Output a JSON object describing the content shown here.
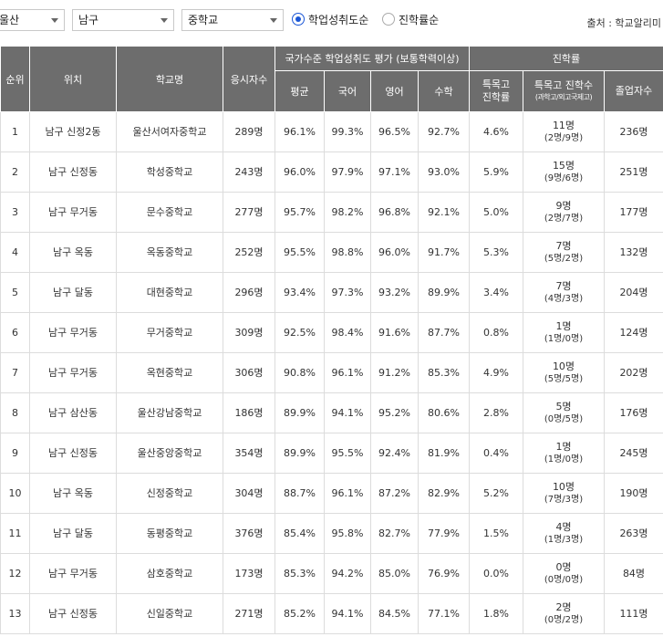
{
  "filters": {
    "region": "울산",
    "district": "남구",
    "school_type": "중학교"
  },
  "sort": {
    "option1": "학업성취도순",
    "option2": "진학률순",
    "selected": "option1"
  },
  "source": "출처 : 학교알리미",
  "headers": {
    "rank": "순위",
    "location": "위치",
    "school": "학교명",
    "examinees": "응시자수",
    "achievement_group": "국가수준 학업성취도 평가 (보통학력이상)",
    "avg": "평균",
    "korean": "국어",
    "english": "영어",
    "math": "수학",
    "advance_group": "진학률",
    "special_rate": "특목고 진학률",
    "special_count": "특목고 진학수",
    "special_count_sub": "(과학고/외고국제고)",
    "graduates": "졸업자수"
  },
  "rows": [
    {
      "rank": "1",
      "location": "남구 신정2동",
      "school": "울산서여자중학교",
      "examinees": "289명",
      "avg": "96.1%",
      "korean": "99.3%",
      "english": "96.5%",
      "math": "92.7%",
      "special_rate": "4.6%",
      "special_count": "11명",
      "special_detail": "(2명/9명)",
      "graduates": "236명"
    },
    {
      "rank": "2",
      "location": "남구 신정동",
      "school": "학성중학교",
      "examinees": "243명",
      "avg": "96.0%",
      "korean": "97.9%",
      "english": "97.1%",
      "math": "93.0%",
      "special_rate": "5.9%",
      "special_count": "15명",
      "special_detail": "(9명/6명)",
      "graduates": "251명"
    },
    {
      "rank": "3",
      "location": "남구 무거동",
      "school": "문수중학교",
      "examinees": "277명",
      "avg": "95.7%",
      "korean": "98.2%",
      "english": "96.8%",
      "math": "92.1%",
      "special_rate": "5.0%",
      "special_count": "9명",
      "special_detail": "(2명/7명)",
      "graduates": "177명"
    },
    {
      "rank": "4",
      "location": "남구 옥동",
      "school": "옥동중학교",
      "examinees": "252명",
      "avg": "95.5%",
      "korean": "98.8%",
      "english": "96.0%",
      "math": "91.7%",
      "special_rate": "5.3%",
      "special_count": "7명",
      "special_detail": "(5명/2명)",
      "graduates": "132명"
    },
    {
      "rank": "5",
      "location": "남구 달동",
      "school": "대현중학교",
      "examinees": "296명",
      "avg": "93.4%",
      "korean": "97.3%",
      "english": "93.2%",
      "math": "89.9%",
      "special_rate": "3.4%",
      "special_count": "7명",
      "special_detail": "(4명/3명)",
      "graduates": "204명"
    },
    {
      "rank": "6",
      "location": "남구 무거동",
      "school": "무거중학교",
      "examinees": "309명",
      "avg": "92.5%",
      "korean": "98.4%",
      "english": "91.6%",
      "math": "87.7%",
      "special_rate": "0.8%",
      "special_count": "1명",
      "special_detail": "(1명/0명)",
      "graduates": "124명"
    },
    {
      "rank": "7",
      "location": "남구 무거동",
      "school": "옥현중학교",
      "examinees": "306명",
      "avg": "90.8%",
      "korean": "96.1%",
      "english": "91.2%",
      "math": "85.3%",
      "special_rate": "4.9%",
      "special_count": "10명",
      "special_detail": "(5명/5명)",
      "graduates": "202명"
    },
    {
      "rank": "8",
      "location": "남구 삼산동",
      "school": "울산강남중학교",
      "examinees": "186명",
      "avg": "89.9%",
      "korean": "94.1%",
      "english": "95.2%",
      "math": "80.6%",
      "special_rate": "2.8%",
      "special_count": "5명",
      "special_detail": "(0명/5명)",
      "graduates": "176명"
    },
    {
      "rank": "9",
      "location": "남구 신정동",
      "school": "울산중앙중학교",
      "examinees": "354명",
      "avg": "89.9%",
      "korean": "95.5%",
      "english": "92.4%",
      "math": "81.9%",
      "special_rate": "0.4%",
      "special_count": "1명",
      "special_detail": "(1명/0명)",
      "graduates": "245명"
    },
    {
      "rank": "10",
      "location": "남구 옥동",
      "school": "신정중학교",
      "examinees": "304명",
      "avg": "88.7%",
      "korean": "96.1%",
      "english": "87.2%",
      "math": "82.9%",
      "special_rate": "5.2%",
      "special_count": "10명",
      "special_detail": "(7명/3명)",
      "graduates": "190명"
    },
    {
      "rank": "11",
      "location": "남구 달동",
      "school": "동평중학교",
      "examinees": "376명",
      "avg": "85.4%",
      "korean": "95.8%",
      "english": "82.7%",
      "math": "77.9%",
      "special_rate": "1.5%",
      "special_count": "4명",
      "special_detail": "(1명/3명)",
      "graduates": "263명"
    },
    {
      "rank": "12",
      "location": "남구 무거동",
      "school": "삼호중학교",
      "examinees": "173명",
      "avg": "85.3%",
      "korean": "94.2%",
      "english": "85.0%",
      "math": "76.9%",
      "special_rate": "0.0%",
      "special_count": "0명",
      "special_detail": "(0명/0명)",
      "graduates": "84명"
    },
    {
      "rank": "13",
      "location": "남구 신정동",
      "school": "신일중학교",
      "examinees": "271명",
      "avg": "85.2%",
      "korean": "94.1%",
      "english": "84.5%",
      "math": "77.1%",
      "special_rate": "1.8%",
      "special_count": "2명",
      "special_detail": "(0명/2명)",
      "graduates": "111명"
    }
  ]
}
